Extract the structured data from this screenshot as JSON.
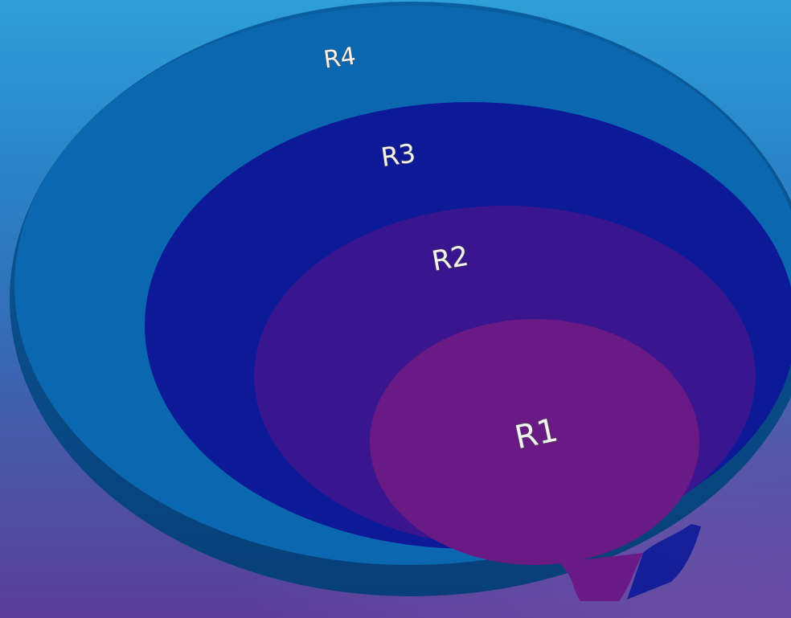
{
  "diagram": {
    "rings": [
      {
        "id": "r4",
        "label": "R4",
        "color": "#0b68b0"
      },
      {
        "id": "r3",
        "label": "R3",
        "color": "#0c1a98"
      },
      {
        "id": "r2",
        "label": "R2",
        "color": "#3a1590"
      },
      {
        "id": "r1",
        "label": "R1",
        "color": "#6a1a84"
      }
    ]
  }
}
